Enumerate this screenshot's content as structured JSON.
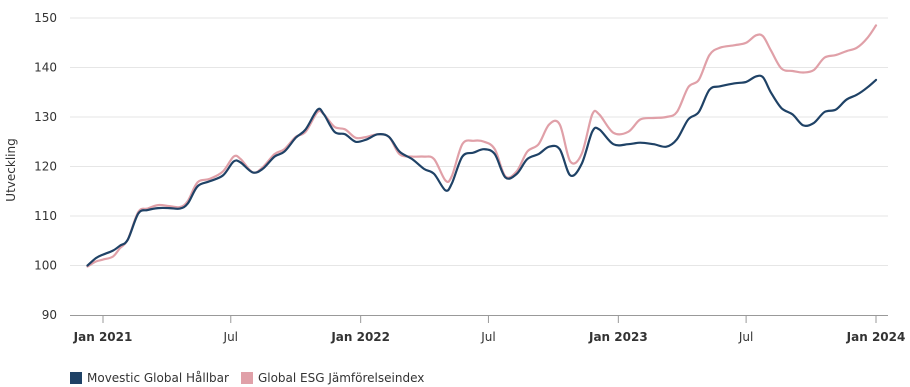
{
  "chart_data": {
    "type": "line",
    "ylabel": "Utveckling",
    "ylim": [
      90,
      150
    ],
    "yticks": [
      90,
      100,
      110,
      120,
      130,
      140,
      150
    ],
    "xlim": [
      "2021-01-01",
      "2024-01-01"
    ],
    "xticks": [
      {
        "date": "2021-01-01",
        "label": "Jan 2021",
        "bold": true
      },
      {
        "date": "2021-07-01",
        "label": "Jul",
        "bold": false
      },
      {
        "date": "2022-01-01",
        "label": "Jan 2022",
        "bold": true
      },
      {
        "date": "2022-07-01",
        "label": "Jul",
        "bold": false
      },
      {
        "date": "2023-01-01",
        "label": "Jan 2023",
        "bold": true
      },
      {
        "date": "2023-07-01",
        "label": "Jul",
        "bold": false
      },
      {
        "date": "2024-01-01",
        "label": "Jan 2024",
        "bold": true
      }
    ],
    "grid": true,
    "legend_position": "bottom-left",
    "series": [
      {
        "name": "Movestic Global Hållbar",
        "color": "#1f4266",
        "points": [
          [
            "2020-12-10",
            100.0
          ],
          [
            "2020-12-22",
            101.5
          ],
          [
            "2021-01-01",
            102.2
          ],
          [
            "2021-01-15",
            103.0
          ],
          [
            "2021-01-25",
            104.0
          ],
          [
            "2021-02-05",
            105.2
          ],
          [
            "2021-02-20",
            110.5
          ],
          [
            "2021-03-05",
            111.2
          ],
          [
            "2021-03-20",
            111.6
          ],
          [
            "2021-04-05",
            111.6
          ],
          [
            "2021-04-20",
            111.5
          ],
          [
            "2021-05-01",
            112.5
          ],
          [
            "2021-05-15",
            116.0
          ],
          [
            "2021-06-01",
            117.0
          ],
          [
            "2021-06-20",
            118.2
          ],
          [
            "2021-07-05",
            121.0
          ],
          [
            "2021-07-15",
            120.8
          ],
          [
            "2021-08-01",
            118.8
          ],
          [
            "2021-08-15",
            119.5
          ],
          [
            "2021-09-01",
            122.0
          ],
          [
            "2021-09-15",
            123.0
          ],
          [
            "2021-10-01",
            125.8
          ],
          [
            "2021-10-15",
            127.5
          ],
          [
            "2021-11-01",
            131.5
          ],
          [
            "2021-11-10",
            130.5
          ],
          [
            "2021-11-25",
            127.0
          ],
          [
            "2021-12-10",
            126.5
          ],
          [
            "2021-12-25",
            125.0
          ],
          [
            "2022-01-10",
            125.5
          ],
          [
            "2022-01-25",
            126.5
          ],
          [
            "2022-02-10",
            126.0
          ],
          [
            "2022-02-25",
            123.0
          ],
          [
            "2022-03-15",
            121.5
          ],
          [
            "2022-04-01",
            119.5
          ],
          [
            "2022-04-15",
            118.5
          ],
          [
            "2022-05-01",
            115.2
          ],
          [
            "2022-05-10",
            116.5
          ],
          [
            "2022-05-25",
            122.0
          ],
          [
            "2022-06-10",
            122.8
          ],
          [
            "2022-06-25",
            123.5
          ],
          [
            "2022-07-10",
            122.5
          ],
          [
            "2022-07-25",
            117.8
          ],
          [
            "2022-08-10",
            118.5
          ],
          [
            "2022-08-25",
            121.5
          ],
          [
            "2022-09-10",
            122.5
          ],
          [
            "2022-09-25",
            124.0
          ],
          [
            "2022-10-10",
            123.5
          ],
          [
            "2022-10-25",
            118.2
          ],
          [
            "2022-11-10",
            120.5
          ],
          [
            "2022-11-25",
            127.0
          ],
          [
            "2022-12-05",
            127.5
          ],
          [
            "2022-12-25",
            124.5
          ],
          [
            "2023-01-15",
            124.5
          ],
          [
            "2023-02-01",
            124.8
          ],
          [
            "2023-02-20",
            124.5
          ],
          [
            "2023-03-10",
            124.0
          ],
          [
            "2023-03-25",
            125.5
          ],
          [
            "2023-04-10",
            129.5
          ],
          [
            "2023-04-25",
            131.0
          ],
          [
            "2023-05-10",
            135.5
          ],
          [
            "2023-05-25",
            136.2
          ],
          [
            "2023-06-15",
            136.8
          ],
          [
            "2023-07-01",
            137.1
          ],
          [
            "2023-07-15",
            138.2
          ],
          [
            "2023-07-25",
            138.0
          ],
          [
            "2023-08-05",
            135.0
          ],
          [
            "2023-08-20",
            131.8
          ],
          [
            "2023-09-05",
            130.5
          ],
          [
            "2023-09-20",
            128.3
          ],
          [
            "2023-10-05",
            128.8
          ],
          [
            "2023-10-20",
            131.0
          ],
          [
            "2023-11-05",
            131.5
          ],
          [
            "2023-11-20",
            133.5
          ],
          [
            "2023-12-05",
            134.5
          ],
          [
            "2023-12-20",
            136.0
          ],
          [
            "2024-01-01",
            137.5
          ]
        ]
      },
      {
        "name": "Global ESG Jämförelseindex",
        "color": "#e0a0a8",
        "points": [
          [
            "2020-12-10",
            99.8
          ],
          [
            "2020-12-22",
            100.8
          ],
          [
            "2021-01-01",
            101.2
          ],
          [
            "2021-01-15",
            101.8
          ],
          [
            "2021-01-25",
            103.5
          ],
          [
            "2021-02-05",
            105.2
          ],
          [
            "2021-02-20",
            110.8
          ],
          [
            "2021-03-05",
            111.5
          ],
          [
            "2021-03-20",
            112.2
          ],
          [
            "2021-04-05",
            112.0
          ],
          [
            "2021-04-20",
            111.8
          ],
          [
            "2021-05-01",
            113.0
          ],
          [
            "2021-05-15",
            116.8
          ],
          [
            "2021-06-01",
            117.5
          ],
          [
            "2021-06-20",
            119.0
          ],
          [
            "2021-07-05",
            122.0
          ],
          [
            "2021-07-15",
            121.5
          ],
          [
            "2021-08-01",
            118.8
          ],
          [
            "2021-08-15",
            119.8
          ],
          [
            "2021-09-01",
            122.5
          ],
          [
            "2021-09-15",
            123.5
          ],
          [
            "2021-10-01",
            126.0
          ],
          [
            "2021-10-15",
            127.0
          ],
          [
            "2021-11-01",
            131.0
          ],
          [
            "2021-11-10",
            130.5
          ],
          [
            "2021-11-25",
            128.0
          ],
          [
            "2021-12-10",
            127.5
          ],
          [
            "2021-12-25",
            125.8
          ],
          [
            "2022-01-10",
            126.0
          ],
          [
            "2022-01-25",
            126.5
          ],
          [
            "2022-02-10",
            126.0
          ],
          [
            "2022-02-25",
            122.5
          ],
          [
            "2022-03-15",
            122.0
          ],
          [
            "2022-04-01",
            122.0
          ],
          [
            "2022-04-15",
            121.5
          ],
          [
            "2022-05-01",
            117.2
          ],
          [
            "2022-05-10",
            118.0
          ],
          [
            "2022-05-25",
            124.5
          ],
          [
            "2022-06-10",
            125.2
          ],
          [
            "2022-06-25",
            125.0
          ],
          [
            "2022-07-10",
            123.5
          ],
          [
            "2022-07-25",
            118.0
          ],
          [
            "2022-08-10",
            119.0
          ],
          [
            "2022-08-25",
            123.0
          ],
          [
            "2022-09-10",
            124.5
          ],
          [
            "2022-09-25",
            128.5
          ],
          [
            "2022-10-10",
            128.5
          ],
          [
            "2022-10-25",
            121.0
          ],
          [
            "2022-11-10",
            122.5
          ],
          [
            "2022-11-25",
            130.5
          ],
          [
            "2022-12-05",
            130.5
          ],
          [
            "2022-12-25",
            126.8
          ],
          [
            "2023-01-15",
            127.0
          ],
          [
            "2023-02-01",
            129.5
          ],
          [
            "2023-02-20",
            129.8
          ],
          [
            "2023-03-10",
            130.0
          ],
          [
            "2023-03-25",
            131.0
          ],
          [
            "2023-04-10",
            136.0
          ],
          [
            "2023-04-25",
            137.5
          ],
          [
            "2023-05-10",
            142.5
          ],
          [
            "2023-05-25",
            144.0
          ],
          [
            "2023-06-15",
            144.5
          ],
          [
            "2023-07-01",
            145.0
          ],
          [
            "2023-07-15",
            146.5
          ],
          [
            "2023-07-25",
            146.3
          ],
          [
            "2023-08-05",
            143.5
          ],
          [
            "2023-08-20",
            139.8
          ],
          [
            "2023-09-05",
            139.3
          ],
          [
            "2023-09-20",
            139.0
          ],
          [
            "2023-10-05",
            139.5
          ],
          [
            "2023-10-20",
            142.0
          ],
          [
            "2023-11-05",
            142.5
          ],
          [
            "2023-11-20",
            143.3
          ],
          [
            "2023-12-05",
            144.0
          ],
          [
            "2023-12-20",
            146.0
          ],
          [
            "2024-01-01",
            148.5
          ]
        ]
      }
    ]
  }
}
